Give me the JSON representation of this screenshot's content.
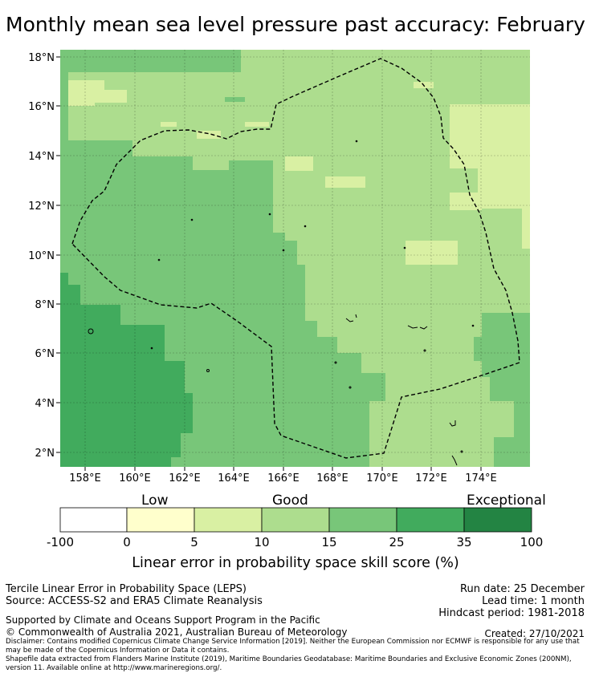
{
  "title": "Monthly mean sea level pressure past accuracy: February",
  "map": {
    "lat_labels": [
      "18°N",
      "16°N",
      "14°N",
      "12°N",
      "10°N",
      "8°N",
      "6°N",
      "4°N",
      "2°N"
    ],
    "lon_labels": [
      "158°E",
      "160°E",
      "162°E",
      "164°E",
      "166°E",
      "168°E",
      "170°E",
      "172°E",
      "174°E"
    ]
  },
  "colorbar": {
    "levels": [
      {
        "label": "Low"
      },
      {
        "label": "Good"
      },
      {
        "label": "Exceptional"
      }
    ],
    "ticks": [
      "-100",
      "0",
      "5",
      "10",
      "15",
      "25",
      "35",
      "100"
    ],
    "colors": [
      "#ffffff",
      "#ffffcc",
      "#d9f0a3",
      "#addd8e",
      "#78c679",
      "#41ab5d",
      "#238443"
    ],
    "label": "Linear error in probability space skill score (%)"
  },
  "info": {
    "left_line1": "Tercile Linear Error in Probability Space (LEPS)",
    "left_line2": "Source: ACCESS-S2 and ERA5 Climate Reanalysis",
    "run_date": "Run date: 25 December",
    "lead_time": "Lead time: 1 month",
    "hindcast": "Hindcast period: 1981-2018",
    "supported": "Supported by Climate and Oceans Support Program in the Pacific",
    "copyright": "© Commonwealth of Australia 2021, Australian Bureau of Meteorology",
    "created": "Created: 27/10/2021",
    "disclaimer": "Disclaimer: Contains modified Copernicus Climate Change Service Information [2019]. Neither the European Commission nor ECMWF is responsible for any use that may be made of the Copernicus Information or Data it contains.",
    "shapefile": "Shapefile data extracted from Flanders Marine Institute (2019), Maritime Boundaries Geodatabase: Maritime Boundaries and Exclusive Economic Zones (200NM), version 11. Available online at http://www.marineregions.org/."
  }
}
